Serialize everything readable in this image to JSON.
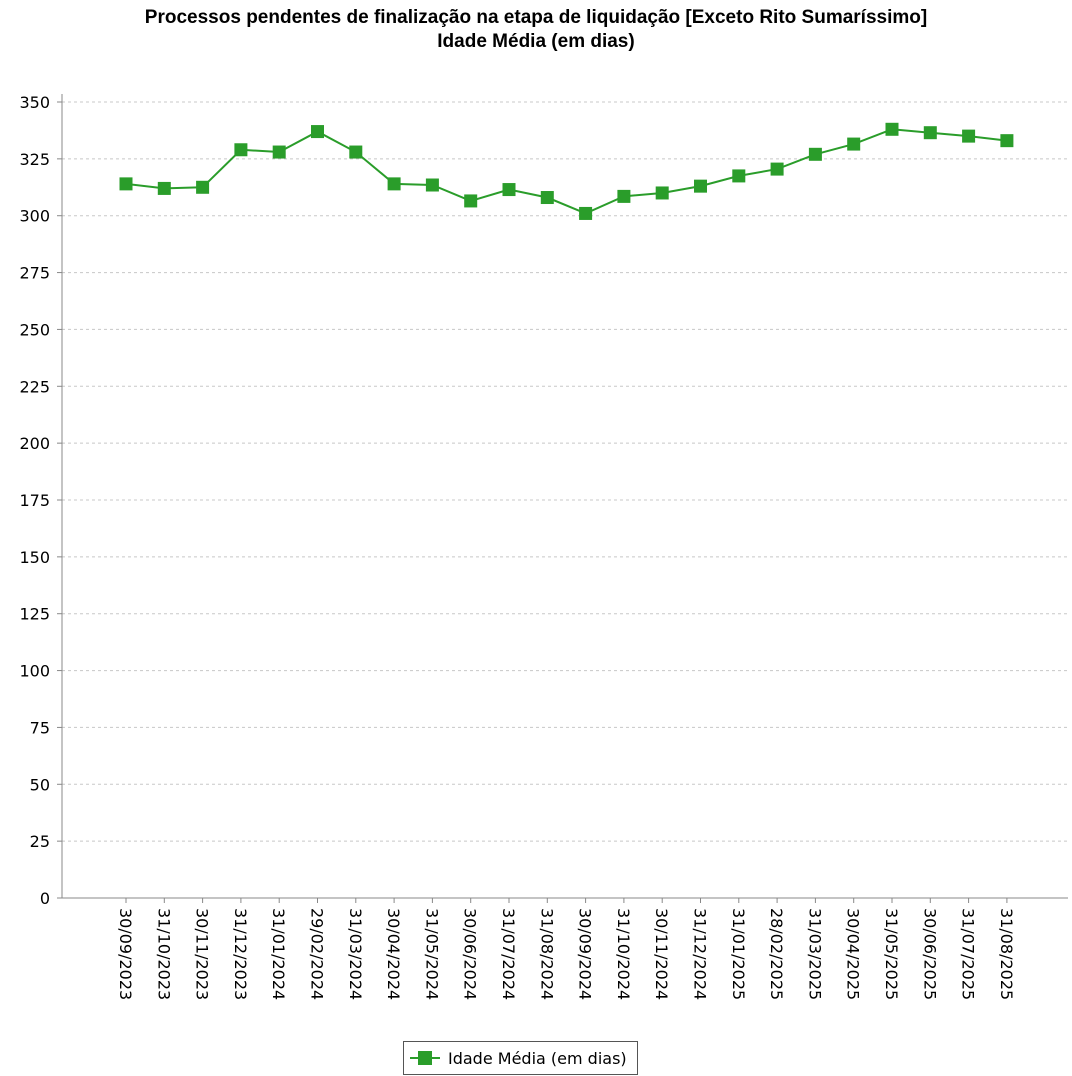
{
  "chart_data": {
    "type": "line",
    "title": "Processos pendentes de finalização na etapa de liquidação [Exceto Rito Sumaríssimo]",
    "subtitle": "Idade Média (em dias)",
    "xlabel": "",
    "ylabel": "",
    "categories": [
      "30/09/2023",
      "31/10/2023",
      "30/11/2023",
      "31/12/2023",
      "31/01/2024",
      "29/02/2024",
      "31/03/2024",
      "30/04/2024",
      "31/05/2024",
      "30/06/2024",
      "31/07/2024",
      "31/08/2024",
      "30/09/2024",
      "31/10/2024",
      "30/11/2024",
      "31/12/2024",
      "31/01/2025",
      "28/02/2025",
      "31/03/2025",
      "30/04/2025",
      "31/05/2025",
      "30/06/2025",
      "31/07/2025",
      "31/08/2025"
    ],
    "series": [
      {
        "name": "Idade Média (em dias)",
        "color": "#2a9d2a",
        "values": [
          314,
          312,
          312.5,
          329,
          328,
          337,
          328,
          314,
          313.5,
          306.5,
          311.5,
          308,
          301,
          308.5,
          310,
          313,
          317.5,
          320.5,
          327,
          331.5,
          338,
          336.5,
          335,
          333
        ]
      }
    ],
    "ylim": [
      0,
      350
    ],
    "yticks": [
      0,
      25,
      50,
      75,
      100,
      125,
      150,
      175,
      200,
      225,
      250,
      275,
      300,
      325,
      350
    ],
    "grid": true,
    "legend_position": "bottom-center"
  }
}
